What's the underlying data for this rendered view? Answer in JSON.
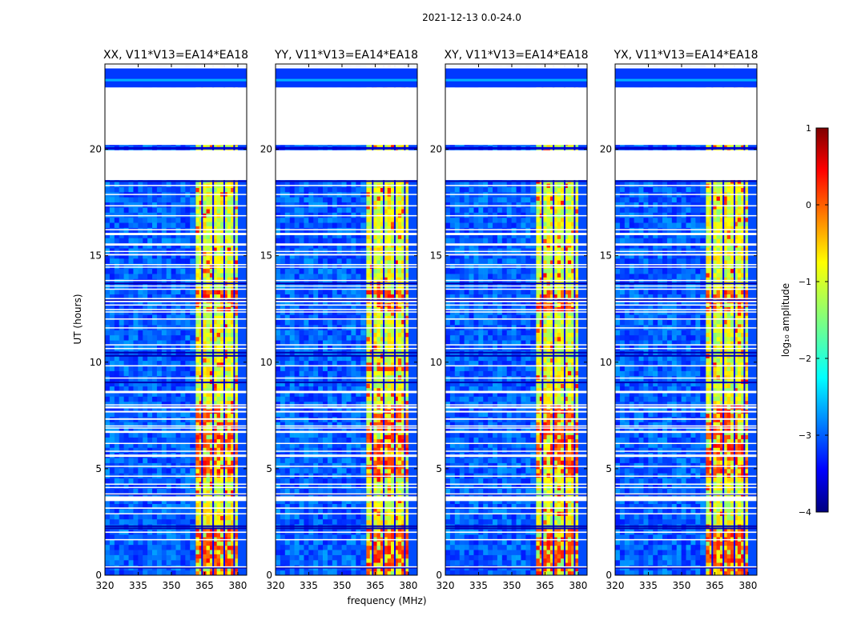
{
  "chart_data": {
    "type": "heatmap",
    "suptitle": "2021-12-13 0.0-24.0",
    "xlabel": "frequency (MHz)",
    "ylabel": "UT (hours)",
    "xlim": [
      320,
      384
    ],
    "ylim": [
      0,
      24
    ],
    "xticks": [
      320,
      335,
      350,
      365,
      380
    ],
    "yticks": [
      0,
      5,
      10,
      15,
      20
    ],
    "panels": [
      {
        "title": "XX, V11*V13=EA14*EA18",
        "pol": "XX"
      },
      {
        "title": "YY, V11*V13=EA14*EA18",
        "pol": "YY"
      },
      {
        "title": "XY, V11*V13=EA14*EA18",
        "pol": "XY"
      },
      {
        "title": "YX, V11*V13=EA14*EA18",
        "pol": "YX"
      }
    ],
    "rfi_band_mhz": [
      361,
      380
    ],
    "rfi_channel_gaps_mhz": [
      363.5,
      368.5,
      373.5,
      378
    ],
    "blank_time_ranges_hours": [
      [
        18.55,
        19.95
      ],
      [
        20.2,
        22.9
      ],
      [
        3.5,
        3.7
      ]
    ],
    "colorbar": {
      "label": "log₁₀ amplitude",
      "range": [
        -4,
        1
      ],
      "ticks": [
        "1",
        "0",
        "−1",
        "−2",
        "−3",
        "−4"
      ],
      "colormap": "jet"
    }
  }
}
